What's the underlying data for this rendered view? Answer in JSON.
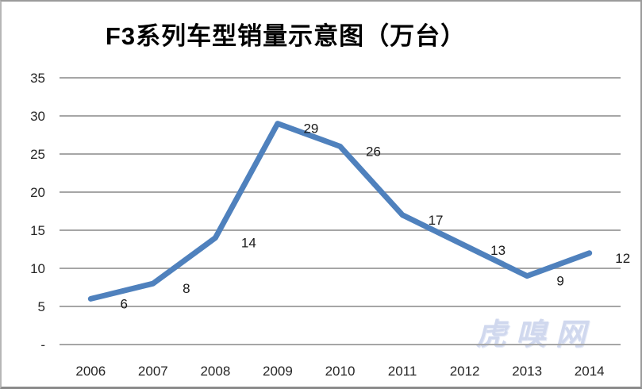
{
  "watermark": "虎嗅网",
  "chart_data": {
    "type": "line",
    "title": "F3系列车型销量示意图（万台）",
    "categories": [
      "2006",
      "2007",
      "2008",
      "2009",
      "2010",
      "2011",
      "2012",
      "2013",
      "2014"
    ],
    "values": [
      6,
      8,
      14,
      29,
      26,
      17,
      13,
      9,
      12
    ],
    "data_labels": [
      "6",
      "8",
      "14",
      "29",
      "26",
      "17",
      "13",
      "9",
      "12"
    ],
    "xlabel": "",
    "ylabel": "",
    "ylim": [
      0,
      35
    ],
    "ytick_step": 5,
    "ytick_labels": [
      "-",
      "5",
      "10",
      "15",
      "20",
      "25",
      "30",
      "35"
    ],
    "grid": true,
    "legend": "none",
    "line_color": "#4f81bd",
    "gridline_color": "#a6a6a6",
    "tick_label_color": "#262626",
    "data_label_color": "#1a1a1a",
    "watermark_color": "#d0d8ee"
  }
}
